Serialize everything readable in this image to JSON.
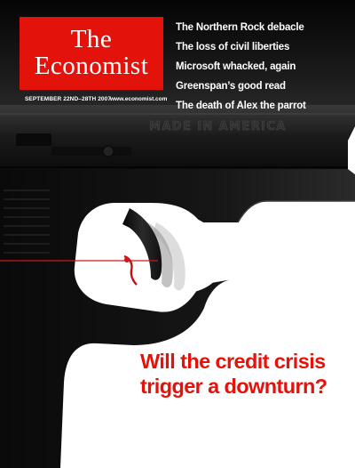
{
  "masthead": {
    "line1": "The",
    "line2": "Economist"
  },
  "coverlines": [
    "The Northern Rock debacle",
    "The loss of civil liberties",
    "Microsoft whacked, again",
    "Greenspan’s good read",
    "The death of Alex the parrot"
  ],
  "issue": {
    "date": "SEPTEMBER 22ND–28TH 2007",
    "website": "www.economist.com"
  },
  "gun": {
    "engraving": "MADE IN AMERICA"
  },
  "headline": {
    "line1": "Will the credit crisis",
    "line2": "trigger a downturn?"
  },
  "colors": {
    "brand_red": "#e3120b",
    "gun_black": "#121212",
    "string_red": "#d01818"
  }
}
